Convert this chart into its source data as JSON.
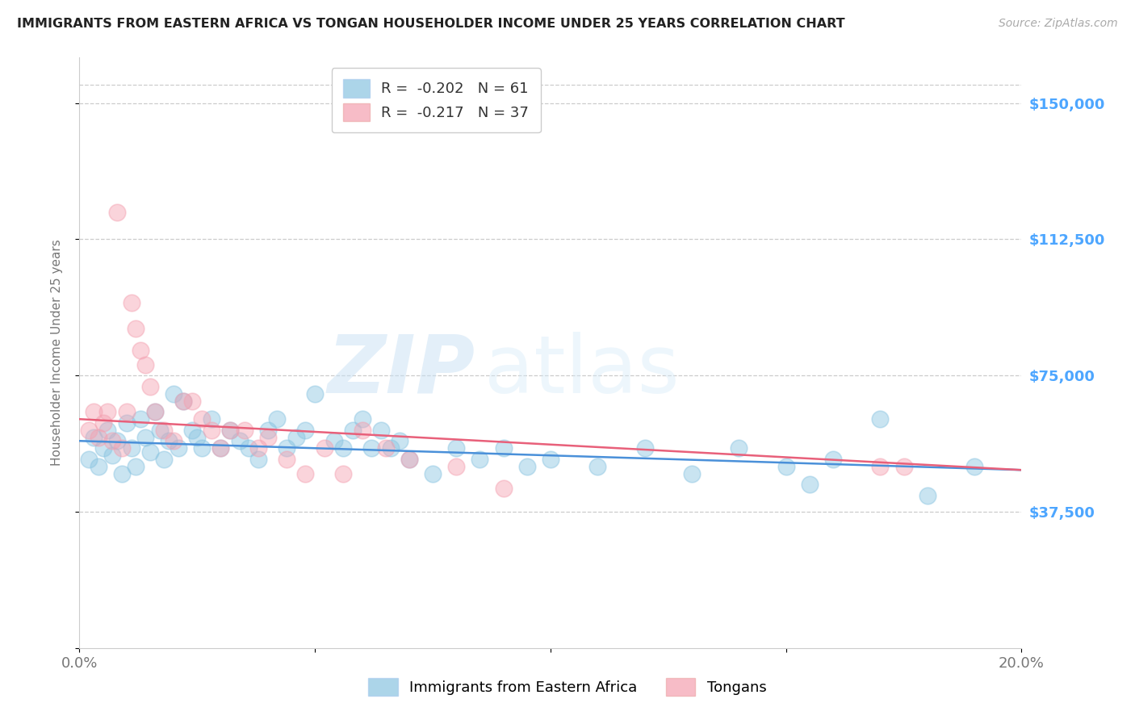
{
  "title": "IMMIGRANTS FROM EASTERN AFRICA VS TONGAN HOUSEHOLDER INCOME UNDER 25 YEARS CORRELATION CHART",
  "source": "Source: ZipAtlas.com",
  "ylabel": "Householder Income Under 25 years",
  "xlim": [
    0.0,
    0.2
  ],
  "ylim": [
    0,
    162500
  ],
  "yticks": [
    0,
    37500,
    75000,
    112500,
    150000
  ],
  "ytick_labels": [
    "",
    "$37,500",
    "$75,000",
    "$112,500",
    "$150,000"
  ],
  "xticks": [
    0.0,
    0.05,
    0.1,
    0.15,
    0.2
  ],
  "xtick_labels": [
    "0.0%",
    "",
    "",
    "",
    "20.0%"
  ],
  "blue_label": "Immigrants from Eastern Africa",
  "pink_label": "Tongans",
  "blue_R": -0.202,
  "blue_N": 61,
  "pink_R": -0.217,
  "pink_N": 37,
  "blue_color": "#89c4e1",
  "pink_color": "#f4a0b0",
  "blue_line_color": "#4a90d9",
  "pink_line_color": "#e8607a",
  "background_color": "#ffffff",
  "watermark_zip": "ZIP",
  "watermark_atlas": "atlas",
  "blue_scatter_x": [
    0.002,
    0.003,
    0.004,
    0.005,
    0.006,
    0.007,
    0.008,
    0.009,
    0.01,
    0.011,
    0.012,
    0.013,
    0.014,
    0.015,
    0.016,
    0.017,
    0.018,
    0.019,
    0.02,
    0.021,
    0.022,
    0.024,
    0.025,
    0.026,
    0.028,
    0.03,
    0.032,
    0.034,
    0.036,
    0.038,
    0.04,
    0.042,
    0.044,
    0.046,
    0.048,
    0.05,
    0.054,
    0.056,
    0.058,
    0.06,
    0.062,
    0.064,
    0.066,
    0.068,
    0.07,
    0.075,
    0.08,
    0.085,
    0.09,
    0.095,
    0.1,
    0.11,
    0.12,
    0.13,
    0.14,
    0.15,
    0.155,
    0.16,
    0.17,
    0.18,
    0.19
  ],
  "blue_scatter_y": [
    52000,
    58000,
    50000,
    55000,
    60000,
    53000,
    57000,
    48000,
    62000,
    55000,
    50000,
    63000,
    58000,
    54000,
    65000,
    60000,
    52000,
    57000,
    70000,
    55000,
    68000,
    60000,
    58000,
    55000,
    63000,
    55000,
    60000,
    57000,
    55000,
    52000,
    60000,
    63000,
    55000,
    58000,
    60000,
    70000,
    57000,
    55000,
    60000,
    63000,
    55000,
    60000,
    55000,
    57000,
    52000,
    48000,
    55000,
    52000,
    55000,
    50000,
    52000,
    50000,
    55000,
    48000,
    55000,
    50000,
    45000,
    52000,
    63000,
    42000,
    50000
  ],
  "pink_scatter_x": [
    0.002,
    0.003,
    0.004,
    0.005,
    0.006,
    0.007,
    0.008,
    0.009,
    0.01,
    0.011,
    0.012,
    0.013,
    0.014,
    0.015,
    0.016,
    0.018,
    0.02,
    0.022,
    0.024,
    0.026,
    0.028,
    0.03,
    0.032,
    0.035,
    0.038,
    0.04,
    0.044,
    0.048,
    0.052,
    0.056,
    0.06,
    0.065,
    0.07,
    0.08,
    0.09,
    0.17,
    0.175
  ],
  "pink_scatter_y": [
    60000,
    65000,
    58000,
    62000,
    65000,
    57000,
    120000,
    55000,
    65000,
    95000,
    88000,
    82000,
    78000,
    72000,
    65000,
    60000,
    57000,
    68000,
    68000,
    63000,
    60000,
    55000,
    60000,
    60000,
    55000,
    58000,
    52000,
    48000,
    55000,
    48000,
    60000,
    55000,
    52000,
    50000,
    44000,
    50000,
    50000
  ]
}
